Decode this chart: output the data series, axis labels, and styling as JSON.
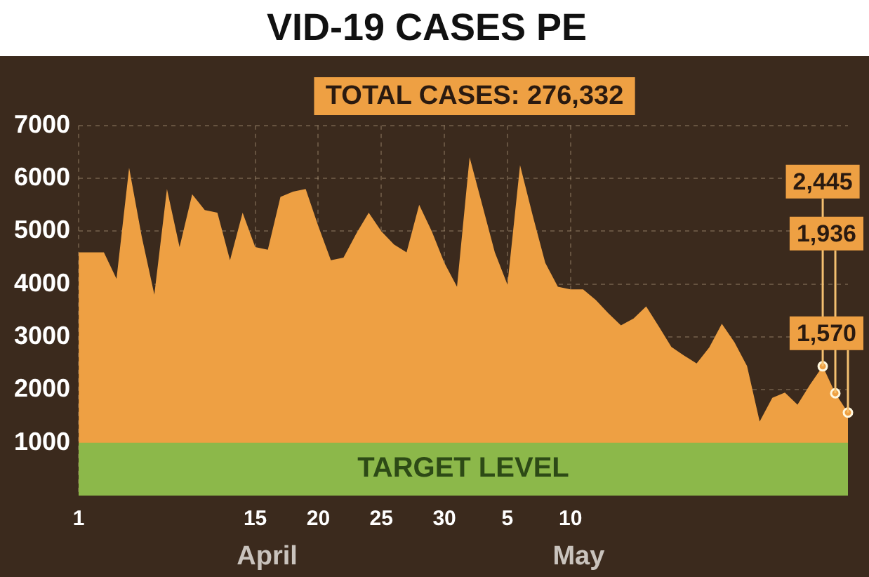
{
  "chart_data": {
    "type": "area",
    "title": "VID-19 CASES PE",
    "categories": [
      "1",
      null,
      null,
      null,
      null,
      null,
      null,
      null,
      null,
      null,
      null,
      null,
      null,
      null,
      "15",
      null,
      null,
      null,
      null,
      "20",
      null,
      null,
      null,
      null,
      "25",
      null,
      null,
      null,
      null,
      "30",
      null,
      null,
      null,
      null,
      "5",
      null,
      null,
      null,
      null,
      "10",
      null,
      null,
      null,
      null,
      null,
      null,
      null,
      null,
      null,
      null,
      null,
      null,
      null,
      null,
      null,
      null,
      null,
      null,
      null,
      null,
      null,
      null
    ],
    "series": [
      {
        "color": "#eea043",
        "values": [
          4600,
          4600,
          4600,
          4100,
          6200,
          4900,
          3800,
          5800,
          4700,
          5700,
          5400,
          5350,
          4450,
          5350,
          4700,
          4650,
          5650,
          5750,
          5800,
          5100,
          4450,
          4500,
          4950,
          5350,
          5000,
          4750,
          4600,
          5500,
          5000,
          4400,
          3950,
          6400,
          5500,
          4600,
          3990,
          6250,
          5300,
          4400,
          3950,
          3900,
          3900,
          3700,
          3450,
          3220,
          3350,
          3580,
          3200,
          2810,
          2650,
          2500,
          2800,
          3250,
          2900,
          2450,
          1400,
          1850,
          1950,
          1720,
          2100,
          2445,
          1936,
          1570
        ],
        "value_labels": [
          null,
          null,
          null,
          null,
          null,
          null,
          null,
          null,
          null,
          null,
          null,
          null,
          null,
          null,
          null,
          null,
          null,
          null,
          null,
          null,
          null,
          null,
          null,
          null,
          null,
          null,
          null,
          null,
          null,
          null,
          null,
          null,
          null,
          null,
          null,
          null,
          null,
          null,
          null,
          null,
          null,
          null,
          null,
          null,
          null,
          null,
          null,
          null,
          null,
          null,
          null,
          null,
          null,
          null,
          null,
          null,
          null,
          null,
          null,
          "2,445",
          "1,936",
          "1,570"
        ]
      }
    ],
    "ylim": [
      0,
      7000
    ],
    "yticks": [
      1000,
      2000,
      3000,
      4000,
      5000,
      6000,
      7000
    ],
    "bands": [
      {
        "axis": "y",
        "from": 0,
        "to": 1000,
        "label": "TARGET LEVEL",
        "color": "#8cb84a"
      }
    ],
    "annotations": [
      "TOTAL CASES: 276,332",
      "April",
      "May"
    ],
    "grid": true,
    "legend": false,
    "marker": "none"
  }
}
